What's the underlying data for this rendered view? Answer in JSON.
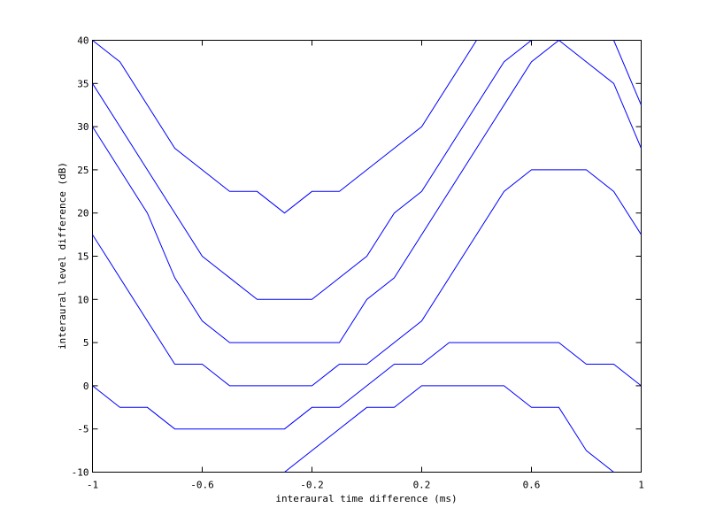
{
  "chart_data": {
    "type": "line",
    "title": "",
    "xlabel": "interaural time difference (ms)",
    "ylabel": "interaural level difference (dB)",
    "xlim": [
      -1,
      1
    ],
    "ylim": [
      -10,
      40
    ],
    "xticks": [
      -1,
      -0.6,
      -0.2,
      0.2,
      0.6,
      1
    ],
    "xtick_labels": [
      "-1",
      "-0.6",
      "-0.2",
      "0.2",
      "0.6",
      "1"
    ],
    "yticks": [
      -10,
      -5,
      0,
      5,
      10,
      15,
      20,
      25,
      30,
      35,
      40
    ],
    "ytick_labels": [
      "-10",
      "-5",
      "0",
      "5",
      "10",
      "15",
      "20",
      "25",
      "30",
      "35",
      "40"
    ],
    "grid": false,
    "line_color": "#0000ff",
    "series": [
      {
        "values": [
          [
            -1,
            40
          ],
          [
            -0.9,
            37.5
          ],
          [
            -0.7,
            27.5
          ],
          [
            -0.5,
            22.5
          ],
          [
            -0.4,
            22.5
          ],
          [
            -0.3,
            20
          ],
          [
            -0.2,
            22.5
          ],
          [
            -0.1,
            22.5
          ],
          [
            0,
            25
          ],
          [
            0.2,
            30
          ],
          [
            0.4,
            40
          ]
        ]
      },
      {
        "values": [
          [
            -1,
            35
          ],
          [
            -0.6,
            15
          ],
          [
            -0.4,
            10
          ],
          [
            -0.2,
            10
          ],
          [
            0,
            15
          ],
          [
            0.1,
            20
          ],
          [
            0.2,
            22.5
          ],
          [
            0.5,
            37.5
          ],
          [
            0.6,
            40
          ]
        ]
      },
      {
        "values": [
          [
            -1,
            30
          ],
          [
            -0.8,
            20
          ],
          [
            -0.7,
            12.5
          ],
          [
            -0.6,
            7.5
          ],
          [
            -0.5,
            5
          ],
          [
            -0.1,
            5
          ],
          [
            0,
            10
          ],
          [
            0.1,
            12.5
          ],
          [
            0.5,
            32.5
          ],
          [
            0.6,
            37.5
          ],
          [
            0.7,
            40
          ],
          [
            0.9,
            35
          ],
          [
            1,
            27.5
          ]
        ]
      },
      {
        "values": [
          [
            -1,
            17.5
          ],
          [
            -0.7,
            2.5
          ],
          [
            -0.6,
            2.5
          ],
          [
            -0.5,
            0
          ],
          [
            -0.2,
            0
          ],
          [
            -0.1,
            2.5
          ],
          [
            0,
            2.5
          ],
          [
            0.2,
            7.5
          ],
          [
            0.5,
            22.5
          ],
          [
            0.6,
            25
          ],
          [
            0.8,
            25
          ],
          [
            0.9,
            22.5
          ],
          [
            1,
            17.5
          ]
        ]
      },
      {
        "values": [
          [
            -1,
            0
          ],
          [
            -0.9,
            -2.5
          ],
          [
            -0.8,
            -2.5
          ],
          [
            -0.7,
            -5
          ],
          [
            -0.3,
            -5
          ],
          [
            -0.2,
            -2.5
          ],
          [
            -0.1,
            -2.5
          ],
          [
            0.1,
            2.5
          ],
          [
            0.2,
            2.5
          ],
          [
            0.3,
            5
          ],
          [
            0.7,
            5
          ],
          [
            0.8,
            2.5
          ],
          [
            0.9,
            2.5
          ],
          [
            1,
            0
          ]
        ]
      },
      {
        "values": [
          [
            -0.3,
            -10
          ],
          [
            0,
            -2.5
          ],
          [
            0.1,
            -2.5
          ],
          [
            0.2,
            0
          ],
          [
            0.5,
            0
          ],
          [
            0.6,
            -2.5
          ],
          [
            0.7,
            -2.5
          ],
          [
            0.8,
            -7.5
          ],
          [
            0.9,
            -10
          ]
        ]
      },
      {
        "values": [
          [
            0.9,
            40
          ],
          [
            1,
            32.5
          ]
        ]
      }
    ]
  }
}
